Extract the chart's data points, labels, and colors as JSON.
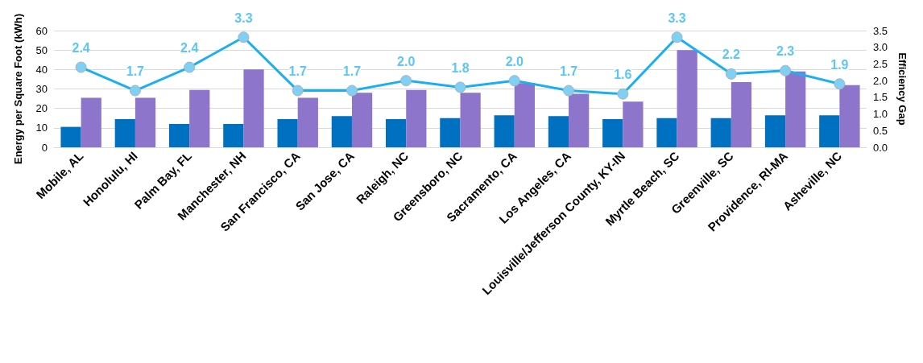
{
  "chart_data": {
    "type": "bar",
    "ylabel": "Energy per Square Foot (kWh)",
    "y2label": "Efficiency Gap",
    "categories": [
      "Mobile, AL",
      "Honolulu, HI",
      "Palm Bay, FL",
      "Manchester, NH",
      "San Francisco, CA",
      "San Jose, CA",
      "Raleigh, NC",
      "Greensboro, NC",
      "Sacramento, CA",
      "Los Angeles, CA",
      "Louisville/Jefferson County, KY-IN",
      "Myrtle Beach, SC",
      "Greenville, SC",
      "Providence, RI-MA",
      "Asheville, NC"
    ],
    "series": [
      {
        "color": "#0070c0",
        "values": [
          10.5,
          14.5,
          12,
          12,
          14.5,
          16,
          14.5,
          15,
          16.5,
          16,
          14.5,
          15,
          15,
          16.5,
          16.5
        ]
      },
      {
        "color": "#8e75cc",
        "values": [
          25.5,
          25.5,
          29.5,
          40,
          25.5,
          28,
          29.5,
          28,
          33,
          27.5,
          23.5,
          50,
          33.5,
          39,
          32
        ]
      },
      {
        "type": "line",
        "axis": "y2",
        "color": "#1aaff0",
        "marker": "circle",
        "values": [
          2.4,
          1.7,
          2.4,
          3.3,
          1.7,
          1.7,
          2.0,
          1.8,
          2.0,
          1.7,
          1.6,
          3.3,
          2.2,
          2.3,
          1.9
        ],
        "value_labels": [
          "2.4",
          "1.7",
          "2.4",
          "3.3",
          "1.7",
          "1.7",
          "2.0",
          "1.8",
          "2.0",
          "1.7",
          "1.6",
          "3.3",
          "2.2",
          "2.3",
          "1.9"
        ]
      }
    ],
    "ylim": [
      0,
      60
    ],
    "yticks": [
      0,
      10,
      20,
      30,
      40,
      50,
      60
    ],
    "y2lim": [
      0,
      3.5
    ],
    "y2ticks": [
      {
        "value": 0,
        "label": "0.0"
      },
      {
        "value": 0.5,
        "label": "0.5"
      },
      {
        "value": 1,
        "label": "1.0"
      },
      {
        "value": 1.5,
        "label": "1.5"
      },
      {
        "value": 2,
        "label": "2.0"
      },
      {
        "value": 2.5,
        "label": "2.5"
      },
      {
        "value": 3,
        "label": "3.0"
      },
      {
        "value": 3.5,
        "label": "3.5"
      }
    ],
    "grid": "y"
  }
}
